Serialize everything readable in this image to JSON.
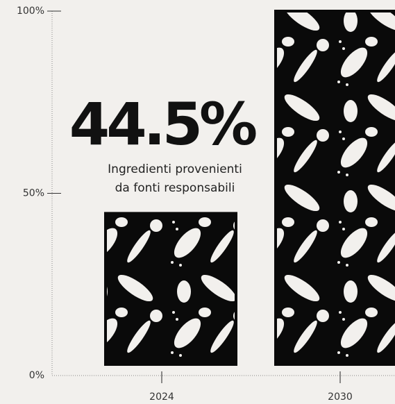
{
  "chart_data": {
    "type": "bar",
    "categories": [
      "2024",
      "2030"
    ],
    "values": [
      44.5,
      100
    ],
    "value_labels": [
      "44.5%",
      null
    ],
    "annotation": [
      "Ingredienti provenienti",
      "da fonti responsabili"
    ],
    "color": "#0a0a0a",
    "ylim": [
      0,
      100
    ],
    "yticks": [
      {
        "value": 0,
        "label": "0%"
      },
      {
        "value": 50,
        "label": "50%"
      },
      {
        "value": 100,
        "label": "100%"
      }
    ]
  }
}
